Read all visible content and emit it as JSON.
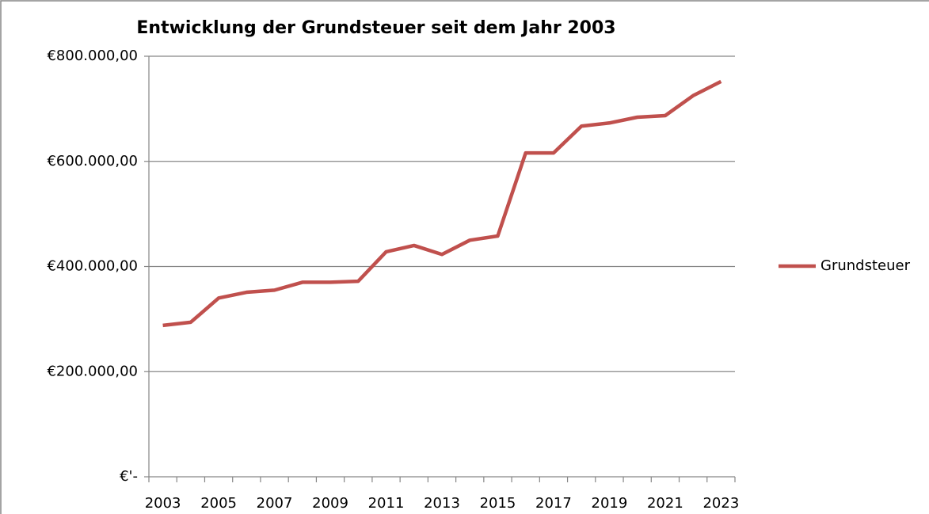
{
  "chart_data": {
    "type": "line",
    "title": "Entwicklung der Grundsteuer seit dem Jahr 2003",
    "categories": [
      "2003",
      null,
      "2005",
      null,
      "2007",
      null,
      "2009",
      null,
      "2011",
      null,
      "2013",
      null,
      "2015",
      null,
      "2017",
      null,
      "2019",
      null,
      "2021",
      null,
      "2023"
    ],
    "series": [
      {
        "name": "Grundsteuer",
        "color": "#c0504d",
        "values": [
          288000,
          294000,
          340000,
          351000,
          355000,
          370000,
          370000,
          372000,
          428000,
          440000,
          423000,
          450000,
          458000,
          616000,
          616000,
          667000,
          673000,
          684000,
          687000,
          725000,
          752000
        ]
      }
    ],
    "ylim": [
      0,
      800000
    ],
    "yticks": [
      {
        "value": 0,
        "label": "€'-"
      },
      {
        "value": 200000,
        "label": "€200.000,00"
      },
      {
        "value": 400000,
        "label": "€400.000,00"
      },
      {
        "value": 600000,
        "label": "€600.000,00"
      },
      {
        "value": 800000,
        "label": "€800.000,00"
      }
    ],
    "grid": true,
    "legend": "right"
  }
}
